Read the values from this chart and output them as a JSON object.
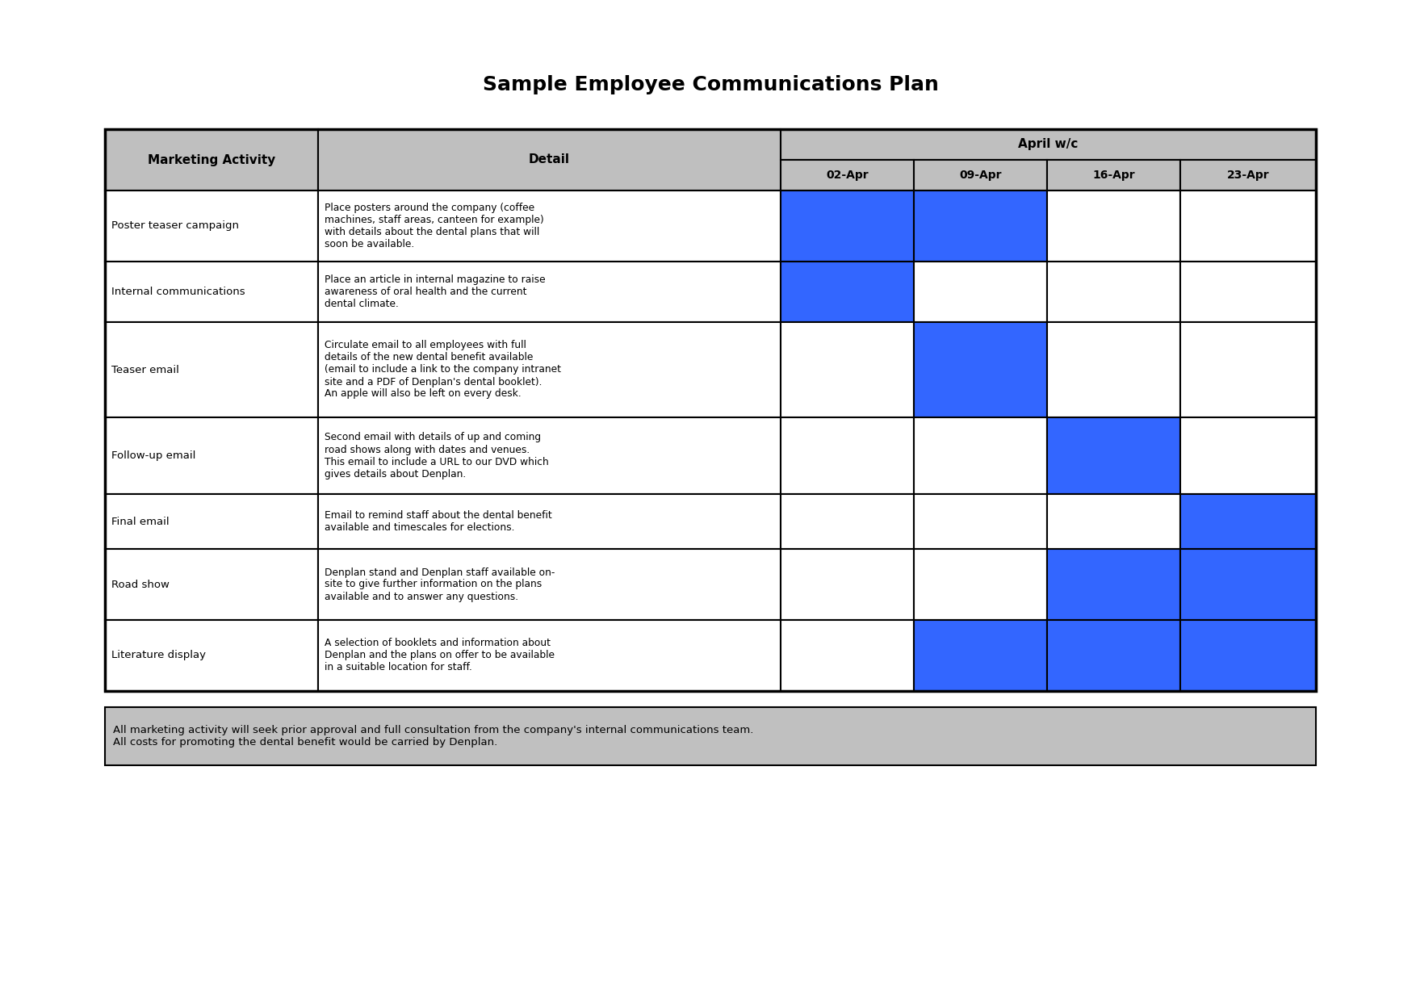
{
  "title": "Sample Employee Communications Plan",
  "title_fontsize": 18,
  "header_bg": "#BFBFBF",
  "blue_color": "#3366FF",
  "white_color": "#FFFFFF",
  "footer_bg": "#C0C0C0",
  "date_labels": [
    "02-Apr",
    "09-Apr",
    "16-Apr",
    "23-Apr"
  ],
  "rows": [
    {
      "activity": "Poster teaser campaign",
      "detail": "Place posters around the company (coffee\nmachines, staff areas, canteen for example)\nwith details about the dental plans that will\nsoon be available.",
      "cells": [
        1,
        1,
        0,
        0
      ]
    },
    {
      "activity": "Internal communications",
      "detail": "Place an article in internal magazine to raise\nawareness of oral health and the current\ndental climate.",
      "cells": [
        1,
        0,
        0,
        0
      ]
    },
    {
      "activity": "Teaser email",
      "detail": "Circulate email to all employees with full\ndetails of the new dental benefit available\n(email to include a link to the company intranet\nsite and a PDF of Denplan's dental booklet).\nAn apple will also be left on every desk.",
      "cells": [
        0,
        1,
        0,
        0
      ]
    },
    {
      "activity": "Follow-up email",
      "detail": "Second email with details of up and coming\nroad shows along with dates and venues.\nThis email to include a URL to our DVD which\ngives details about Denplan.",
      "cells": [
        0,
        0,
        1,
        0
      ]
    },
    {
      "activity": "Final email",
      "detail": "Email to remind staff about the dental benefit\navailable and timescales for elections.",
      "cells": [
        0,
        0,
        0,
        1
      ]
    },
    {
      "activity": "Road show",
      "detail": "Denplan stand and Denplan staff available on-\nsite to give further information on the plans\navailable and to answer any questions.",
      "cells": [
        0,
        0,
        1,
        1
      ]
    },
    {
      "activity": "Literature display",
      "detail": "A selection of booklets and information about\nDenplan and the plans on offer to be available\nin a suitable location for staff.",
      "cells": [
        0,
        1,
        1,
        1
      ]
    }
  ],
  "footer_text": "All marketing activity will seek prior approval and full consultation from the company's internal communications team.\nAll costs for promoting the dental benefit would be carried by Denplan."
}
